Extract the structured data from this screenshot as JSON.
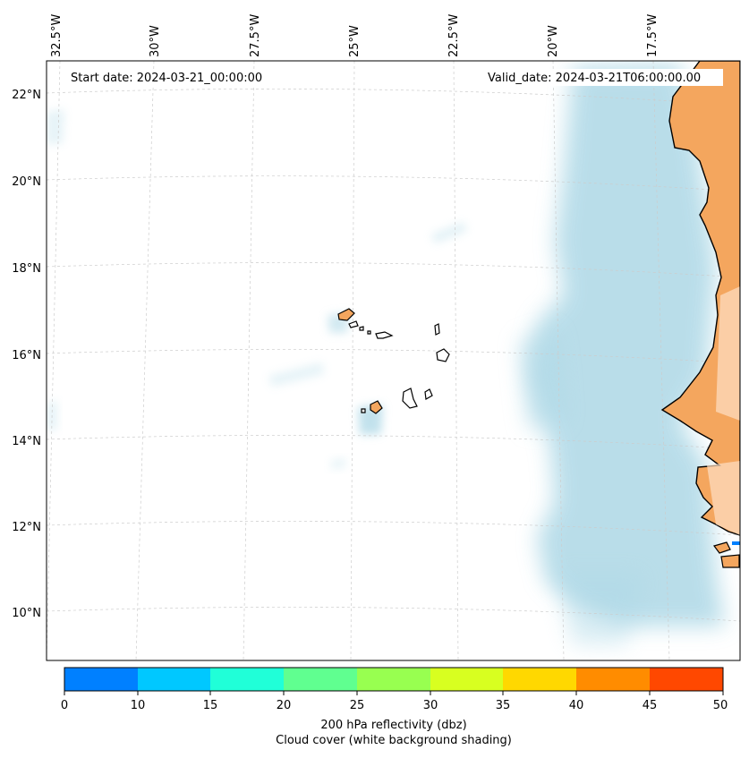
{
  "map": {
    "start_label": "Start date: 2024-03-21_00:00:00",
    "valid_label": "Valid_date: 2024-03-21T06:00:00.00",
    "lon_labels": [
      "32.5°W",
      "30°W",
      "27.5°W",
      "25°W",
      "22.5°W",
      "20°W",
      "17.5°W"
    ],
    "lat_labels": [
      "22°N",
      "20°N",
      "18°N",
      "16°N",
      "14°N",
      "12°N",
      "10°N"
    ],
    "colors": {
      "land": "#f4a65e",
      "cloud": "#add8e6",
      "coast": "#000000",
      "grid": "#bbbbbb"
    }
  },
  "colorbar": {
    "ticks": [
      "0",
      "10",
      "15",
      "20",
      "25",
      "30",
      "35",
      "40",
      "45",
      "50"
    ],
    "colors": [
      "#0080ff",
      "#00c8ff",
      "#20ffd8",
      "#60ff90",
      "#98ff50",
      "#d8ff20",
      "#ffd800",
      "#ff8c00",
      "#ff4800"
    ],
    "label_line1": "200 hPa reflectivity (dbz)",
    "label_line2": "Cloud cover (white background shading)"
  }
}
